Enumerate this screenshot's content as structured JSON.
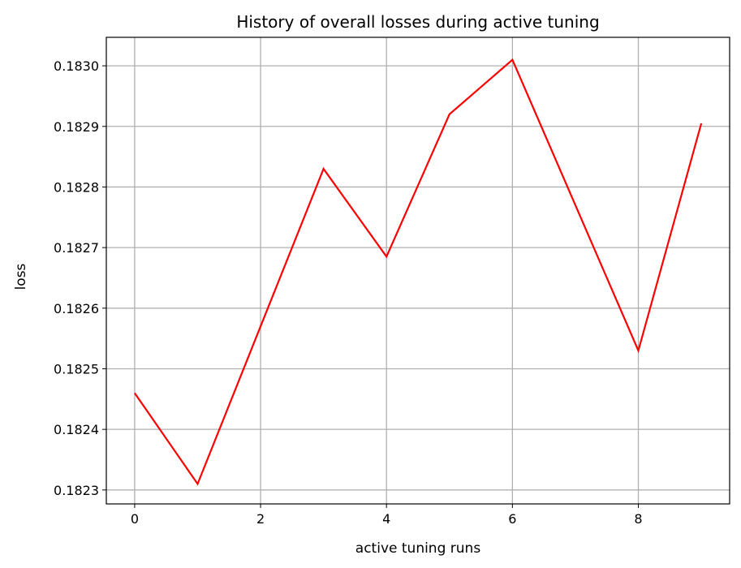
{
  "chart_data": {
    "type": "line",
    "title": "History of overall losses during active tuning",
    "xlabel": "active tuning runs",
    "ylabel": "loss",
    "x": [
      0,
      1,
      2,
      3,
      4,
      5,
      6,
      7,
      8,
      9
    ],
    "series": [
      {
        "values": [
          0.18246,
          0.18231,
          0.18257,
          0.18283,
          0.182685,
          0.18292,
          0.18301,
          0.18277,
          0.18253,
          0.182905
        ],
        "color": "#ff0000"
      }
    ],
    "xlim": [
      -0.45,
      9.45
    ],
    "ylim": [
      0.182277,
      0.183047
    ],
    "xticks": [
      0,
      2,
      4,
      6,
      8
    ],
    "xtick_labels": [
      "0",
      "2",
      "4",
      "6",
      "8"
    ],
    "yticks": [
      0.1823,
      0.1824,
      0.1825,
      0.1826,
      0.1827,
      0.1828,
      0.1829,
      0.183
    ],
    "ytick_labels": [
      "0.1823",
      "0.1824",
      "0.1825",
      "0.1826",
      "0.1827",
      "0.1828",
      "0.1829",
      "0.1830"
    ],
    "grid": true,
    "legend": "none"
  }
}
